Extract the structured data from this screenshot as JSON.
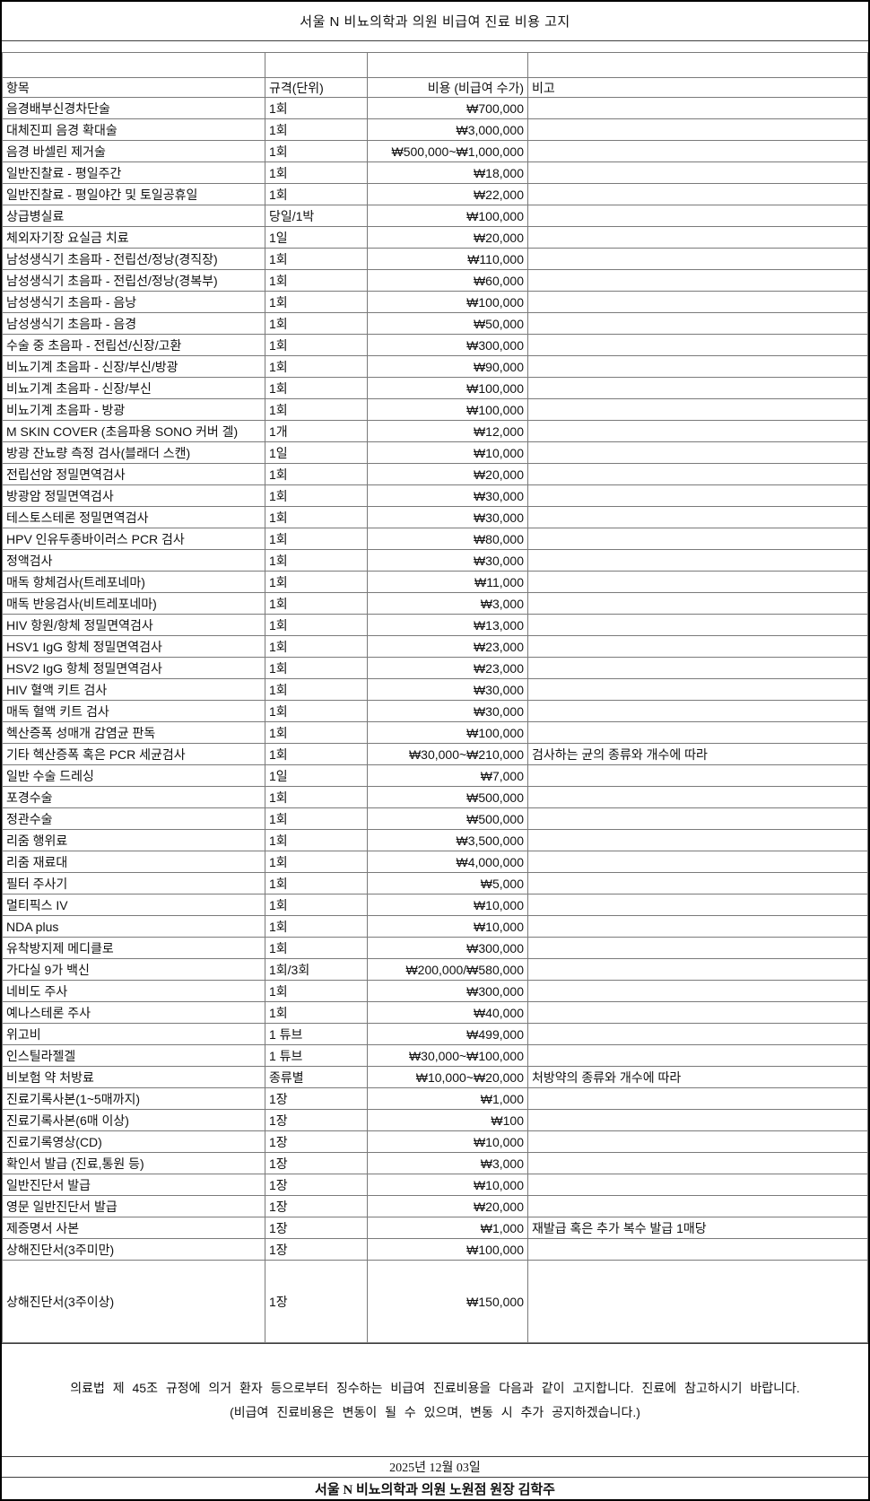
{
  "title": "서울 N 비뇨의학과 의원 비급여 진료 비용 고지",
  "table": {
    "headers": [
      "항목",
      "규격(단위)",
      "비용 (비급여 수가)",
      "비고"
    ],
    "rows": [
      {
        "item": "음경배부신경차단술",
        "unit": "1회",
        "cost": "₩700,000"
      },
      {
        "item": "대체진피 음경 확대술",
        "unit": "1회",
        "cost": "₩3,000,000"
      },
      {
        "item": "음경 바셀린 제거술",
        "unit": "1회",
        "cost": "₩500,000~₩1,000,000"
      },
      {
        "item": "일반진찰료 - 평일주간",
        "unit": "1회",
        "cost": "₩18,000"
      },
      {
        "item": "일반진찰료 - 평일야간 및 토일공휴일",
        "unit": "1회",
        "cost": "₩22,000"
      },
      {
        "item": "상급병실료",
        "unit": "당일/1박",
        "cost": "₩100,000"
      },
      {
        "item": "체외자기장 요실금 치료",
        "unit": "1일",
        "cost": "₩20,000"
      },
      {
        "item": "남성생식기 초음파 - 전립선/정낭(경직장)",
        "unit": "1회",
        "cost": "₩110,000"
      },
      {
        "item": "남성생식기 초음파 - 전립선/정낭(경복부)",
        "unit": "1회",
        "cost": "₩60,000"
      },
      {
        "item": "남성생식기 초음파 - 음낭",
        "unit": "1회",
        "cost": "₩100,000"
      },
      {
        "item": "남성생식기 초음파 - 음경",
        "unit": "1회",
        "cost": "₩50,000"
      },
      {
        "item": "수술 중 초음파 - 전립선/신장/고환",
        "unit": "1회",
        "cost": "₩300,000"
      },
      {
        "item": "비뇨기계 초음파 - 신장/부신/방광",
        "unit": "1회",
        "cost": "₩90,000"
      },
      {
        "item": "비뇨기계 초음파 - 신장/부신",
        "unit": "1회",
        "cost": "₩100,000"
      },
      {
        "item": "비뇨기계 초음파 - 방광",
        "unit": "1회",
        "cost": "₩100,000"
      },
      {
        "item": "M SKIN COVER (초음파용 SONO 커버 겔)",
        "unit": "1개",
        "cost": "₩12,000"
      },
      {
        "item": "방광 잔뇨량 측정 검사(블래더 스캔)",
        "unit": "1일",
        "cost": "₩10,000"
      },
      {
        "item": "전립선암 정밀면역검사",
        "unit": "1회",
        "cost": "₩20,000"
      },
      {
        "item": "방광암 정밀면역검사",
        "unit": "1회",
        "cost": "₩30,000"
      },
      {
        "item": "테스토스테론 정밀면역검사",
        "unit": "1회",
        "cost": "₩30,000"
      },
      {
        "item": "HPV 인유두종바이러스 PCR 검사",
        "unit": "1회",
        "cost": "₩80,000"
      },
      {
        "item": "정액검사",
        "unit": "1회",
        "cost": "₩30,000"
      },
      {
        "item": "매독 항체검사(트레포네마)",
        "unit": "1회",
        "cost": "₩11,000"
      },
      {
        "item": "매독 반응검사(비트레포네마)",
        "unit": "1회",
        "cost": "₩3,000"
      },
      {
        "item": "HIV 항원/항체 정밀면역검사",
        "unit": "1회",
        "cost": "₩13,000"
      },
      {
        "item": "HSV1 IgG 항체 정밀면역검사",
        "unit": "1회",
        "cost": "₩23,000"
      },
      {
        "item": "HSV2 IgG 항체 정밀면역검사",
        "unit": "1회",
        "cost": "₩23,000"
      },
      {
        "item": "HIV 혈액 키트 검사",
        "unit": "1회",
        "cost": "₩30,000"
      },
      {
        "item": "매독 혈액 키트 검사",
        "unit": "1회",
        "cost": "₩30,000"
      },
      {
        "item": "헥산증폭 성매개 감염균 판독",
        "unit": "1회",
        "cost": "₩100,000"
      },
      {
        "item": "기타 헥산증폭 혹은 PCR 세균검사",
        "unit": "1회",
        "cost": "₩30,000~₩210,000",
        "note": "검사하는 균의 종류와 개수에 따라"
      },
      {
        "item": "일반 수술 드레싱",
        "unit": "1일",
        "cost": "₩7,000"
      },
      {
        "item": "포경수술",
        "unit": "1회",
        "cost": "₩500,000"
      },
      {
        "item": "정관수술",
        "unit": "1회",
        "cost": "₩500,000"
      },
      {
        "item": "리줌 행위료",
        "unit": "1회",
        "cost": "₩3,500,000"
      },
      {
        "item": "리줌 재료대",
        "unit": "1회",
        "cost": "₩4,000,000"
      },
      {
        "item": "필터 주사기",
        "unit": "1회",
        "cost": "₩5,000"
      },
      {
        "item": "멀티픽스 IV",
        "unit": "1회",
        "cost": "₩10,000"
      },
      {
        "item": "NDA plus",
        "unit": "1회",
        "cost": "₩10,000"
      },
      {
        "item": "유착방지제 메디클로",
        "unit": "1회",
        "cost": "₩300,000"
      },
      {
        "item": "가다실 9가 백신",
        "unit": "1회/3회",
        "cost": "₩200,000/₩580,000"
      },
      {
        "item": "네비도 주사",
        "unit": "1회",
        "cost": "₩300,000"
      },
      {
        "item": "예나스테론 주사",
        "unit": "1회",
        "cost": "₩40,000"
      },
      {
        "item": "위고비",
        "unit": "1 튜브",
        "cost": "₩499,000"
      },
      {
        "item": "인스틸라젤겔",
        "unit": "1 튜브",
        "cost": "₩30,000~₩100,000"
      },
      {
        "item": "비보험 약 처방료",
        "unit": "종류별",
        "cost": "₩10,000~₩20,000",
        "note": "처방약의 종류와 개수에 따라"
      },
      {
        "item": "진료기록사본(1~5매까지)",
        "unit": "1장",
        "cost": "₩1,000"
      },
      {
        "item": "진료기록사본(6매 이상)",
        "unit": "1장",
        "cost": "₩100"
      },
      {
        "item": "진료기록영상(CD)",
        "unit": "1장",
        "cost": "₩10,000"
      },
      {
        "item": "확인서 발급 (진료,통원 등)",
        "unit": "1장",
        "cost": "₩3,000"
      },
      {
        "item": "일반진단서 발급",
        "unit": "1장",
        "cost": "₩10,000"
      },
      {
        "item": "영문 일반진단서 발급",
        "unit": "1장",
        "cost": "₩20,000"
      },
      {
        "item": "제증명서 사본",
        "unit": "1장",
        "cost": "₩1,000",
        "note": "재발급 혹은 추가 복수 발급 1매당"
      },
      {
        "item": "상해진단서(3주미만)",
        "unit": "1장",
        "cost": "₩100,000"
      },
      {
        "item": "상해진단서(3주이상)",
        "unit": "1장",
        "cost": "₩150,000",
        "tall": true
      }
    ]
  },
  "footer": {
    "notice_line1": "의료법 제 45조 규정에 의거 환자 등으로부터 징수하는 비급여 진료비용을 다음과 같이 고지합니다. 진료에 참고하시기 바랍니다.",
    "notice_line2": "(비급여 진료비용은 변동이 될 수 있으며, 변동 시 추가 공지하겠습니다.)",
    "date": "2025년 12월 03일",
    "signature": "서울 N 비뇨의학과 의원 노원점 원장 김학주"
  }
}
